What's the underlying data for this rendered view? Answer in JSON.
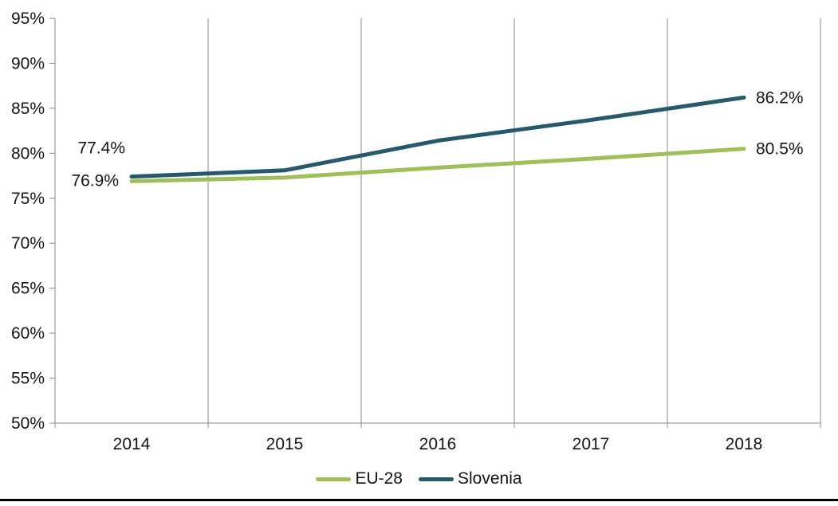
{
  "chart_data": {
    "type": "line",
    "title": "",
    "xlabel": "",
    "ylabel": "",
    "categories": [
      "2014",
      "2015",
      "2016",
      "2017",
      "2018"
    ],
    "series": [
      {
        "name": "EU-28",
        "color": "#9dc05a",
        "values": [
          76.9,
          77.3,
          78.4,
          79.4,
          80.5
        ],
        "endpoint_labels": {
          "first": "76.9%",
          "last": "80.5%"
        }
      },
      {
        "name": "Slovenia",
        "color": "#25596b",
        "values": [
          77.4,
          78.1,
          81.4,
          83.7,
          86.2
        ],
        "endpoint_labels": {
          "first": "77.4%",
          "last": "86.2%"
        }
      }
    ],
    "y_axis": {
      "min": 50,
      "max": 95,
      "step": 5,
      "tick_labels": [
        "50%",
        "55%",
        "60%",
        "65%",
        "70%",
        "75%",
        "80%",
        "85%",
        "90%",
        "95%"
      ],
      "format": "percent"
    },
    "x_axis": {
      "tick_labels": [
        "2014",
        "2015",
        "2016",
        "2017",
        "2018"
      ]
    },
    "grid": {
      "vertical": true,
      "horizontal": false
    },
    "legend": {
      "position": "bottom",
      "entries": [
        "EU-28",
        "Slovenia"
      ]
    },
    "colors": {
      "background": "#ffffff",
      "axis": "#898989",
      "gridline": "#898989",
      "text": "#151515",
      "bottom_rule": "#000000"
    }
  }
}
